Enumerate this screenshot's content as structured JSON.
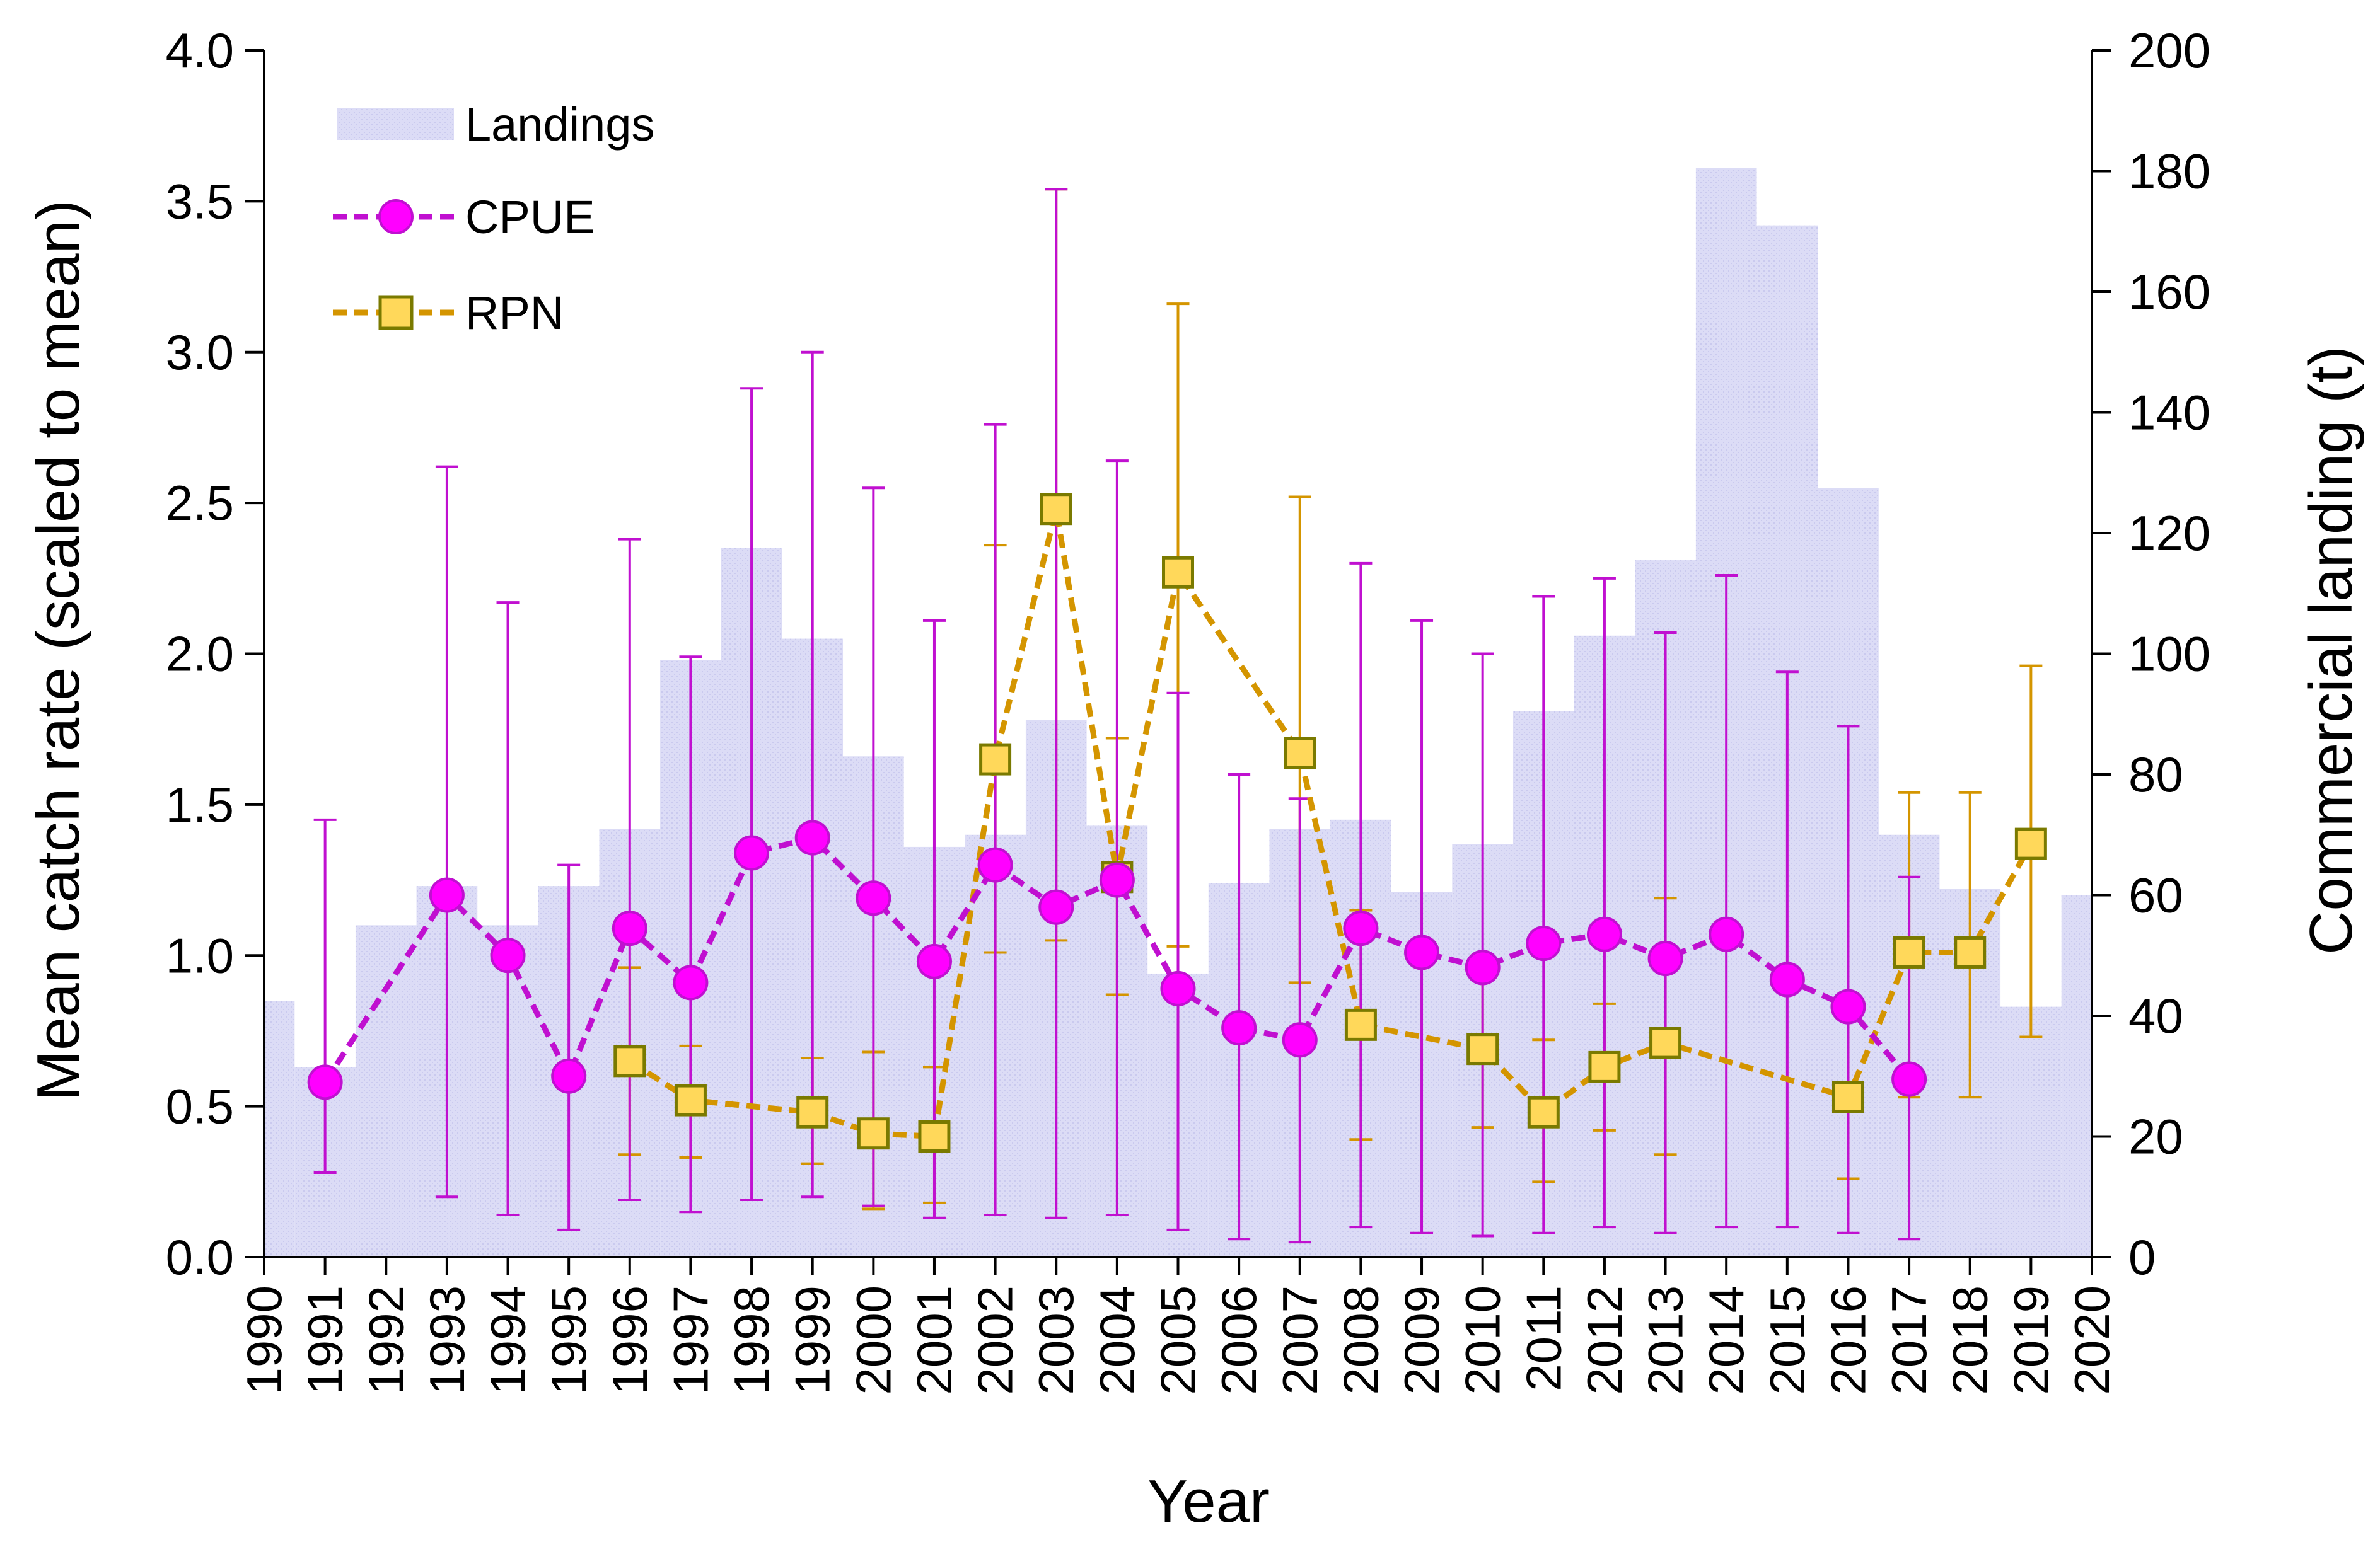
{
  "chart_data": {
    "type": "bar+line",
    "title": "",
    "xlabel": "Year",
    "ylabel": "Mean catch rate (scaled to mean)",
    "y2label": "Commercial landing (t)",
    "x": [
      1990,
      1991,
      1992,
      1993,
      1994,
      1995,
      1996,
      1997,
      1998,
      1999,
      2000,
      2001,
      2002,
      2003,
      2004,
      2005,
      2006,
      2007,
      2008,
      2009,
      2010,
      2011,
      2012,
      2013,
      2014,
      2015,
      2016,
      2017,
      2018,
      2019,
      2020
    ],
    "xlim": [
      1990,
      2020
    ],
    "ylim": [
      0,
      4.0
    ],
    "y2lim": [
      0,
      200
    ],
    "yticks": [
      "0.0",
      "0.5",
      "1.0",
      "1.5",
      "2.0",
      "2.5",
      "3.0",
      "3.5",
      "4.0"
    ],
    "y2ticks": [
      "0",
      "20",
      "40",
      "60",
      "80",
      "100",
      "120",
      "140",
      "160",
      "180",
      "200"
    ],
    "legend_position": "top-left",
    "colors": {
      "landings": "#dcdcf6",
      "cpue_line": "#c010d0",
      "cpue_marker": "#ff00ff",
      "rpn_line": "#d49500",
      "rpn_marker": "#ffd85a",
      "rpn_marker_edge": "#7a7a00",
      "axis": "#000000"
    },
    "series": [
      {
        "name": "Landings",
        "type": "bar",
        "axis": "right",
        "data": [
          {
            "year": 1990,
            "value": 42.5
          },
          {
            "year": 1991,
            "value": 31.5
          },
          {
            "year": 1992,
            "value": 55
          },
          {
            "year": 1993,
            "value": 61.5
          },
          {
            "year": 1994,
            "value": 55
          },
          {
            "year": 1995,
            "value": 61.5
          },
          {
            "year": 1996,
            "value": 71
          },
          {
            "year": 1997,
            "value": 99
          },
          {
            "year": 1998,
            "value": 117.5
          },
          {
            "year": 1999,
            "value": 102.5
          },
          {
            "year": 2000,
            "value": 83
          },
          {
            "year": 2001,
            "value": 68
          },
          {
            "year": 2002,
            "value": 70
          },
          {
            "year": 2003,
            "value": 89
          },
          {
            "year": 2004,
            "value": 71.5
          },
          {
            "year": 2005,
            "value": 47
          },
          {
            "year": 2006,
            "value": 62
          },
          {
            "year": 2007,
            "value": 71
          },
          {
            "year": 2008,
            "value": 72.5
          },
          {
            "year": 2009,
            "value": 60.5
          },
          {
            "year": 2010,
            "value": 68.5
          },
          {
            "year": 2011,
            "value": 90.5
          },
          {
            "year": 2012,
            "value": 103
          },
          {
            "year": 2013,
            "value": 115.5
          },
          {
            "year": 2014,
            "value": 180.5
          },
          {
            "year": 2015,
            "value": 171
          },
          {
            "year": 2016,
            "value": 127.5
          },
          {
            "year": 2017,
            "value": 70
          },
          {
            "year": 2018,
            "value": 61
          },
          {
            "year": 2019,
            "value": 41.5
          },
          {
            "year": 2020,
            "value": 60
          }
        ]
      },
      {
        "name": "CPUE",
        "type": "line",
        "axis": "left",
        "data": [
          {
            "year": 1991,
            "value": 0.58,
            "lo": 0.28,
            "hi": 1.45
          },
          {
            "year": 1993,
            "value": 1.2,
            "lo": 0.2,
            "hi": 2.62
          },
          {
            "year": 1994,
            "value": 1.0,
            "lo": 0.14,
            "hi": 2.17
          },
          {
            "year": 1995,
            "value": 0.6,
            "lo": 0.09,
            "hi": 1.3
          },
          {
            "year": 1996,
            "value": 1.09,
            "lo": 0.19,
            "hi": 2.38
          },
          {
            "year": 1997,
            "value": 0.91,
            "lo": 0.15,
            "hi": 1.99
          },
          {
            "year": 1998,
            "value": 1.34,
            "lo": 0.19,
            "hi": 2.88
          },
          {
            "year": 1999,
            "value": 1.39,
            "lo": 0.2,
            "hi": 3.0
          },
          {
            "year": 2000,
            "value": 1.19,
            "lo": 0.17,
            "hi": 2.55
          },
          {
            "year": 2001,
            "value": 0.98,
            "lo": 0.13,
            "hi": 2.11
          },
          {
            "year": 2002,
            "value": 1.3,
            "lo": 0.14,
            "hi": 2.76
          },
          {
            "year": 2003,
            "value": 1.16,
            "lo": 0.13,
            "hi": 3.54
          },
          {
            "year": 2004,
            "value": 1.25,
            "lo": 0.14,
            "hi": 2.64
          },
          {
            "year": 2005,
            "value": 0.89,
            "lo": 0.09,
            "hi": 1.87
          },
          {
            "year": 2006,
            "value": 0.76,
            "lo": 0.06,
            "hi": 1.6
          },
          {
            "year": 2007,
            "value": 0.72,
            "lo": 0.05,
            "hi": 1.52
          },
          {
            "year": 2008,
            "value": 1.09,
            "lo": 0.1,
            "hi": 2.3
          },
          {
            "year": 2009,
            "value": 1.01,
            "lo": 0.08,
            "hi": 2.11
          },
          {
            "year": 2010,
            "value": 0.96,
            "lo": 0.07,
            "hi": 2.0
          },
          {
            "year": 2011,
            "value": 1.04,
            "lo": 0.08,
            "hi": 2.19
          },
          {
            "year": 2012,
            "value": 1.07,
            "lo": 0.1,
            "hi": 2.25
          },
          {
            "year": 2013,
            "value": 0.99,
            "lo": 0.08,
            "hi": 2.07
          },
          {
            "year": 2014,
            "value": 1.07,
            "lo": 0.1,
            "hi": 2.26
          },
          {
            "year": 2015,
            "value": 0.92,
            "lo": 0.1,
            "hi": 1.94
          },
          {
            "year": 2016,
            "value": 0.83,
            "lo": 0.08,
            "hi": 1.76
          },
          {
            "year": 2017,
            "value": 0.59,
            "lo": 0.06,
            "hi": 1.26
          }
        ]
      },
      {
        "name": "RPN",
        "type": "line",
        "axis": "left",
        "data": [
          {
            "year": 1996,
            "value": 0.65,
            "lo": 0.34,
            "hi": 0.96
          },
          {
            "year": 1997,
            "value": 0.52,
            "lo": 0.33,
            "hi": 0.7
          },
          {
            "year": 1999,
            "value": 0.48,
            "lo": 0.31,
            "hi": 0.66
          },
          {
            "year": 2000,
            "value": 0.41,
            "lo": 0.16,
            "hi": 0.68
          },
          {
            "year": 2001,
            "value": 0.4,
            "lo": 0.18,
            "hi": 0.63
          },
          {
            "year": 2002,
            "value": 1.65,
            "lo": 1.01,
            "hi": 2.36
          },
          {
            "year": 2003,
            "value": 2.48,
            "lo": 1.05,
            "hi": 3.54
          },
          {
            "year": 2004,
            "value": 1.26,
            "lo": 0.87,
            "hi": 1.72
          },
          {
            "year": 2005,
            "value": 2.27,
            "lo": 1.03,
            "hi": 3.16
          },
          {
            "year": 2007,
            "value": 1.67,
            "lo": 0.91,
            "hi": 2.52
          },
          {
            "year": 2008,
            "value": 0.77,
            "lo": 0.39,
            "hi": 1.15
          },
          {
            "year": 2010,
            "value": 0.69,
            "lo": 0.43,
            "hi": 0.94
          },
          {
            "year": 2011,
            "value": 0.48,
            "lo": 0.25,
            "hi": 0.72
          },
          {
            "year": 2012,
            "value": 0.63,
            "lo": 0.42,
            "hi": 0.84
          },
          {
            "year": 2013,
            "value": 0.71,
            "lo": 0.34,
            "hi": 1.19
          },
          {
            "year": 2016,
            "value": 0.53,
            "lo": 0.26,
            "hi": 0.8
          },
          {
            "year": 2017,
            "value": 1.01,
            "lo": 0.53,
            "hi": 1.54
          },
          {
            "year": 2018,
            "value": 1.01,
            "lo": 0.53,
            "hi": 1.54
          },
          {
            "year": 2019,
            "value": 1.37,
            "lo": 0.73,
            "hi": 1.96
          }
        ]
      }
    ]
  }
}
